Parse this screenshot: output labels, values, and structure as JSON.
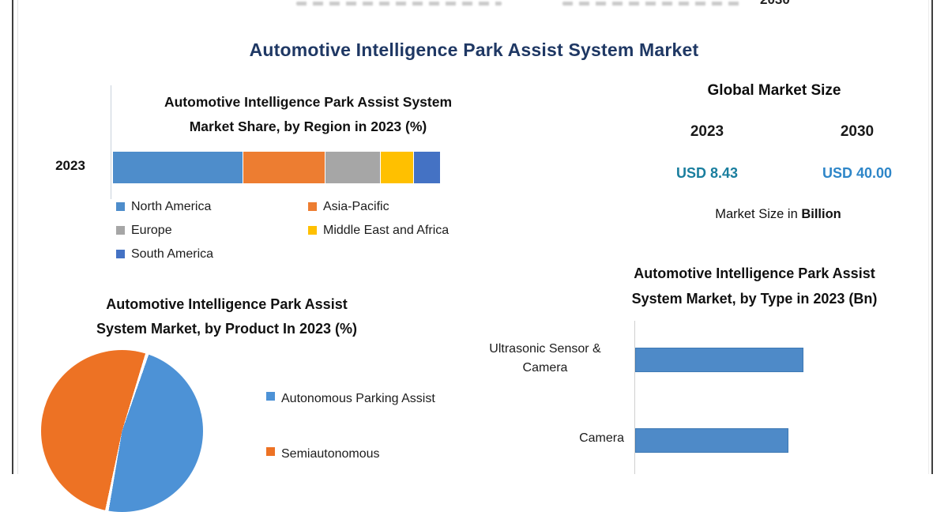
{
  "page": {
    "title": "Automotive Intelligence Park Assist System Market",
    "cropped_header_fragment": "2030"
  },
  "market_size_panel": {
    "title": "Global Market Size",
    "year_left": "2023",
    "year_right": "2030",
    "value_left": "USD 8.43",
    "value_right": "USD 40.00",
    "value_left_color": "#1a7e9e",
    "value_right_color": "#2e86c8",
    "caption_prefix": "Market Size in ",
    "caption_bold": "Billion"
  },
  "region_chart": {
    "title_line1": "Automotive Intelligence Park Assist System",
    "title_line2": "Market Share, by Region in 2023 (%)",
    "axis_label": "2023"
  },
  "product_chart": {
    "title_line1": "Automotive Intelligence Park Assist",
    "title_line2": "System Market, by Product In 2023 (%)"
  },
  "type_chart": {
    "title_line1": "Automotive Intelligence Park Assist",
    "title_line2": "System Market, by Type in 2023 (Bn)",
    "label_bar1": "Ultrasonic Sensor & Camera",
    "label_bar2": "Camera"
  },
  "chart_data": [
    {
      "type": "bar",
      "variant": "stacked-horizontal",
      "title": "Automotive Intelligence Park Assist System Market Share, by Region in 2023 (%)",
      "categories": [
        "2023"
      ],
      "series": [
        {
          "name": "North America",
          "value": 40,
          "color": "#4e8dcb"
        },
        {
          "name": "Asia-Pacific",
          "value": 25,
          "color": "#ed7d31"
        },
        {
          "name": "Europe",
          "value": 17,
          "color": "#a6a6a6"
        },
        {
          "name": "Middle East and Africa",
          "value": 10,
          "color": "#ffc000"
        },
        {
          "name": "South America",
          "value": 8,
          "color": "#4472c4"
        }
      ],
      "legend_columns": [
        [
          0,
          2,
          4
        ],
        [
          1,
          3
        ]
      ],
      "note": "no data labels shown; percentages estimated from segment widths",
      "xlim": [
        0,
        100
      ],
      "grid": false
    },
    {
      "type": "pie",
      "title": "Automotive Intelligence Park Assist System Market, by Product In 2023 (%)",
      "start_angle_deg": 18,
      "slices": [
        {
          "name": "Autonomous Parking Assist",
          "value": 48,
          "color": "#4d92d6"
        },
        {
          "name": "Semiautonomous",
          "value": 52,
          "color": "#ed7224"
        }
      ],
      "note": "no data labels shown; slice sizes estimated; second legend entry truncated by image crop; pie bottom cropped",
      "legend_position": "right"
    },
    {
      "type": "bar",
      "variant": "horizontal",
      "title": "Automotive Intelligence Park Assist System Market, by Type in 2023 (Bn)",
      "categories": [
        "Ultrasonic Sensor & Camera",
        "Camera"
      ],
      "values": [
        1.0,
        0.91
      ],
      "bar_color": "#4e8ac8",
      "note": "value axis not visible (cropped); values are relative bar lengths; chart bottom cropped",
      "grid": false
    }
  ]
}
